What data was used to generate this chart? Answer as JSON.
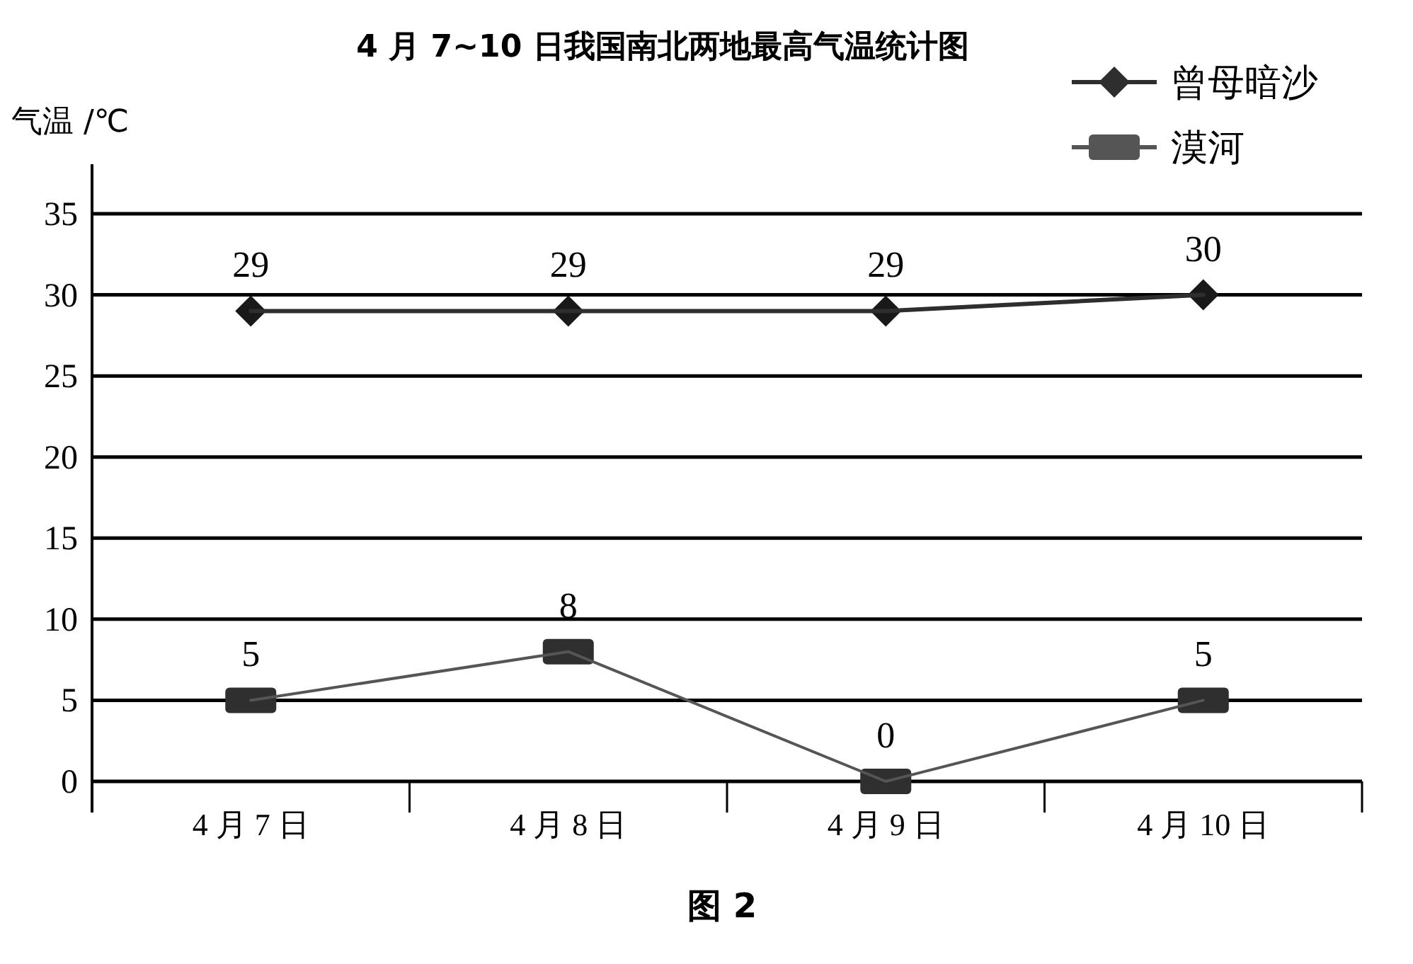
{
  "chart_data": {
    "type": "line",
    "title": "4 月 7~10 日我国南北两地最高气温统计图",
    "ylabel": "气温 /℃",
    "categories": [
      "4 月 7 日",
      "4 月 8 日",
      "4 月 9 日",
      "4 月 10 日"
    ],
    "series": [
      {
        "name": "曾母暗沙",
        "color": "#2e2e2e",
        "marker": "diamond",
        "values": [
          29,
          29,
          29,
          30
        ]
      },
      {
        "name": "漠河",
        "color": "#555555",
        "marker": "square",
        "values": [
          5,
          8,
          0,
          5
        ]
      }
    ],
    "ylim": [
      0,
      35
    ],
    "yticks": [
      0,
      5,
      10,
      15,
      20,
      25,
      30,
      35
    ],
    "grid": "y",
    "legend": "top right",
    "data_labels": true,
    "line_style": "solid",
    "annotations": [
      "图 2"
    ]
  }
}
